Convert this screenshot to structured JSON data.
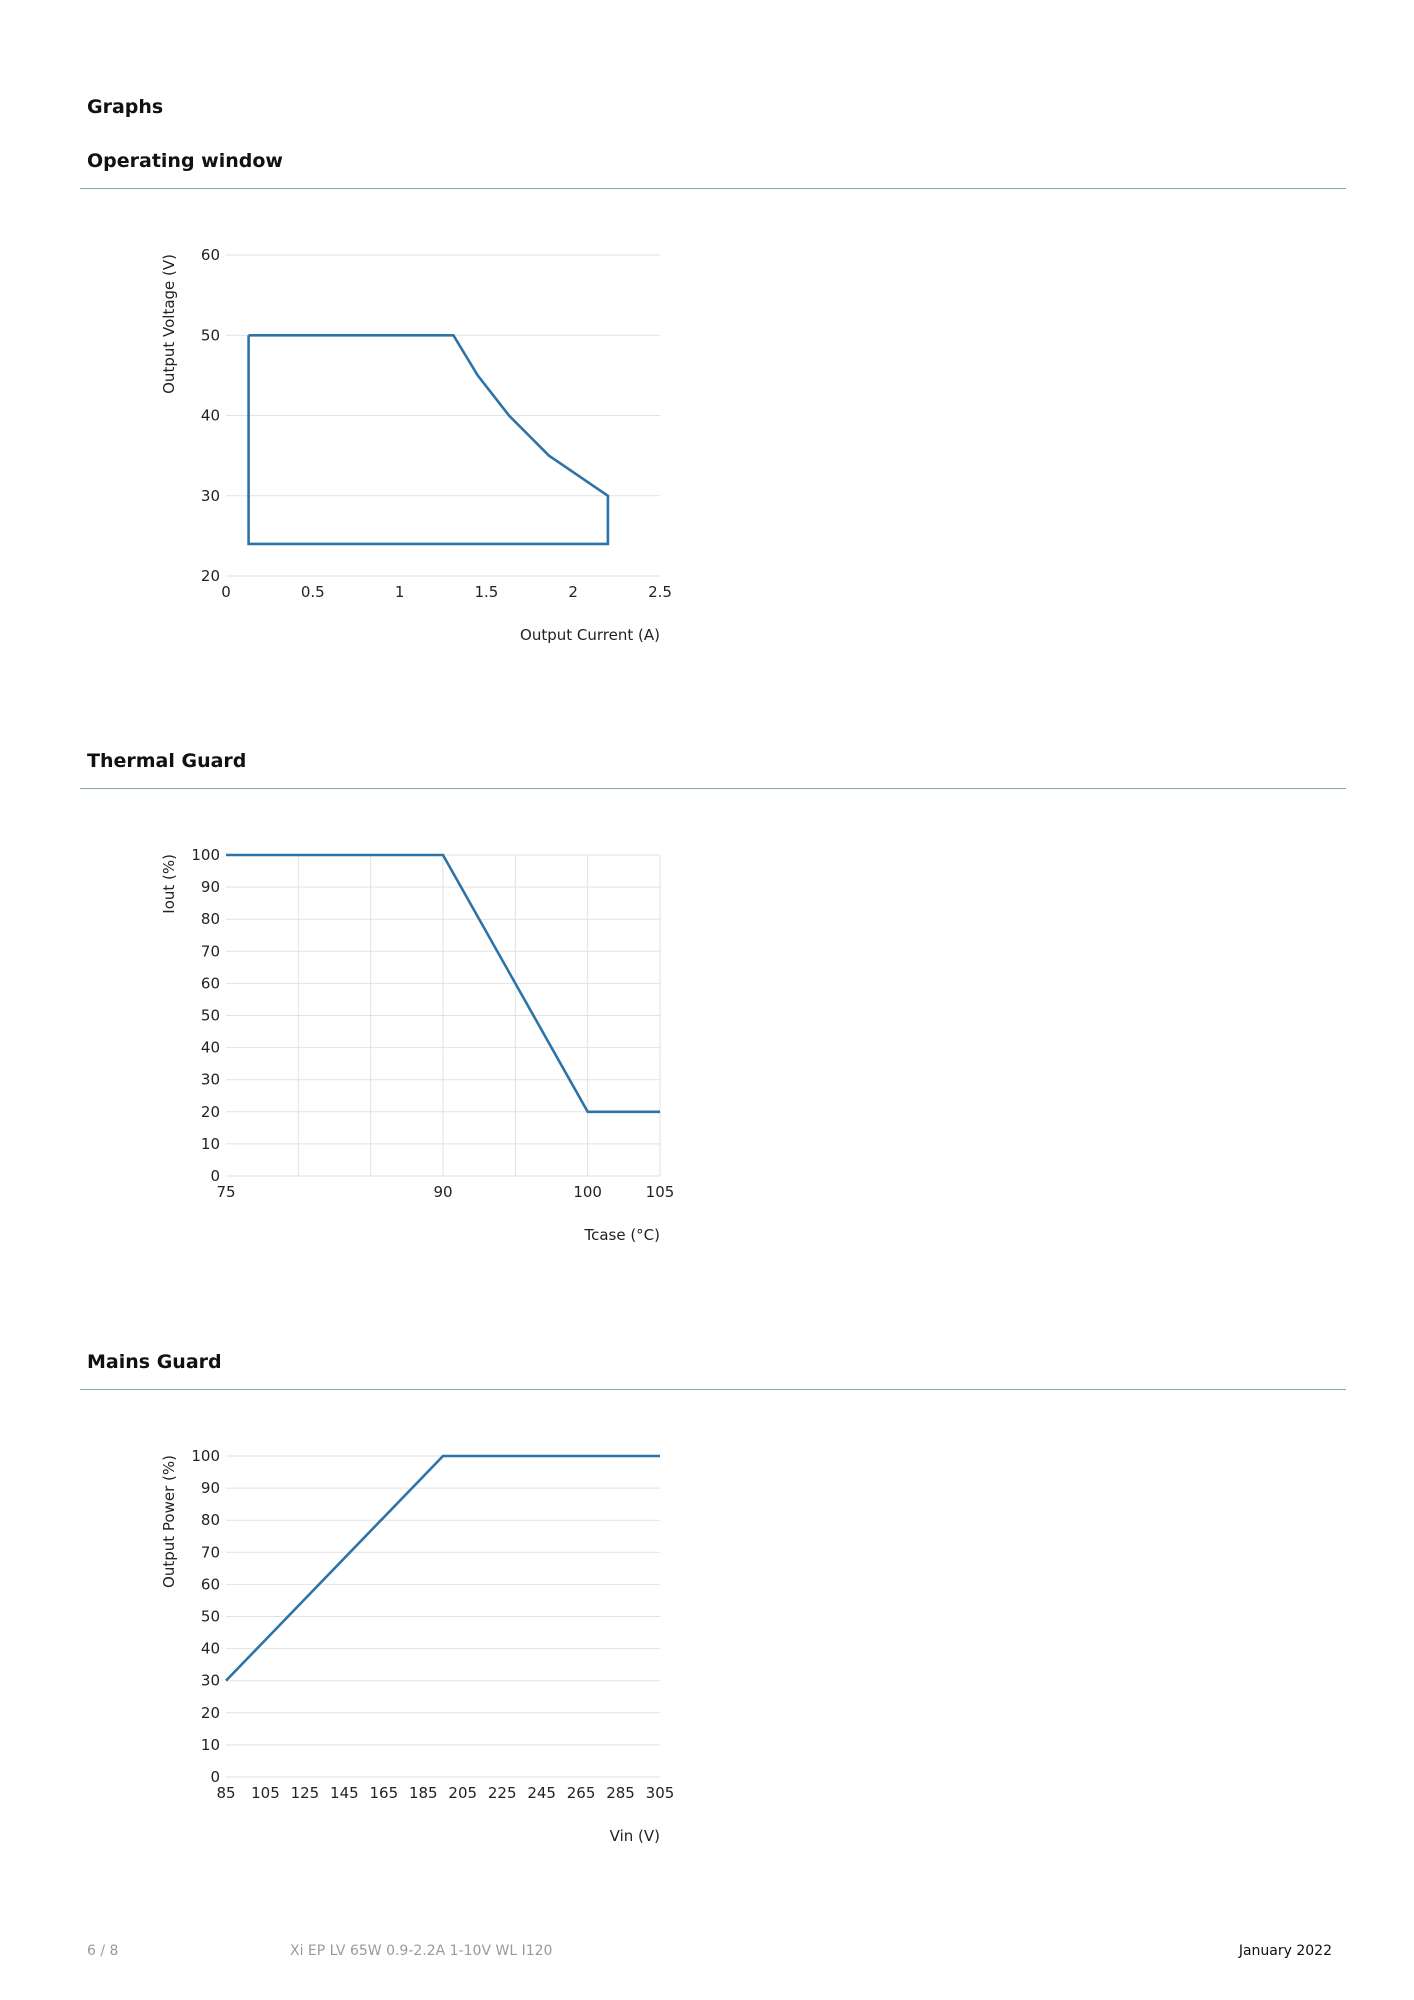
{
  "page": {
    "heading": "Graphs"
  },
  "sections": [
    {
      "title": "Operating window"
    },
    {
      "title": "Thermal Guard"
    },
    {
      "title": "Mains Guard"
    }
  ],
  "chart_data": [
    {
      "type": "line",
      "xlabel": "Output Current (A)",
      "ylabel": "Output Voltage (V)",
      "xlim": [
        0,
        2.5
      ],
      "ylim": [
        20,
        60
      ],
      "xticks": [
        0,
        0.5,
        1,
        1.5,
        2,
        2.5
      ],
      "xtick_labels": [
        "0",
        "0.5",
        "1",
        "1.5",
        "2",
        "2.5"
      ],
      "yticks": [
        20,
        30,
        40,
        50,
        60
      ],
      "ytick_labels": [
        "20",
        "30",
        "40",
        "50",
        "60"
      ],
      "vertical_grid": false,
      "series": [
        {
          "x": [
            0.13,
            1.31,
            1.45,
            1.63,
            1.86,
            2.2,
            2.2,
            0.13,
            0.13
          ],
          "y": [
            50,
            50,
            45,
            40,
            35,
            30,
            24,
            24,
            50
          ]
        }
      ]
    },
    {
      "type": "line",
      "xlabel": "Tcase (°C)",
      "ylabel": "Iout (%)",
      "xlim": [
        75,
        105
      ],
      "ylim": [
        0,
        100
      ],
      "xticks": [
        75,
        80,
        85,
        90,
        95,
        100,
        105
      ],
      "xtick_labels": [
        "75",
        "",
        "",
        "90",
        "",
        "100",
        "105"
      ],
      "yticks": [
        0,
        10,
        20,
        30,
        40,
        50,
        60,
        70,
        80,
        90,
        100
      ],
      "ytick_labels": [
        "0",
        "10",
        "20",
        "30",
        "40",
        "50",
        "60",
        "70",
        "80",
        "90",
        "100"
      ],
      "vertical_grid": true,
      "series": [
        {
          "x": [
            75,
            90,
            100,
            105
          ],
          "y": [
            100,
            100,
            20,
            20
          ]
        }
      ]
    },
    {
      "type": "line",
      "xlabel": "Vin (V)",
      "ylabel": "Output Power (%)",
      "xlim": [
        85,
        305
      ],
      "ylim": [
        0,
        100
      ],
      "xticks": [
        85,
        105,
        125,
        145,
        165,
        185,
        205,
        225,
        245,
        265,
        285,
        305
      ],
      "xtick_labels": [
        "85",
        "105",
        "125",
        "145",
        "165",
        "185",
        "205",
        "225",
        "245",
        "265",
        "285",
        "305"
      ],
      "yticks": [
        0,
        10,
        20,
        30,
        40,
        50,
        60,
        70,
        80,
        90,
        100
      ],
      "ytick_labels": [
        "0",
        "10",
        "20",
        "30",
        "40",
        "50",
        "60",
        "70",
        "80",
        "90",
        "100"
      ],
      "vertical_grid": false,
      "series": [
        {
          "x": [
            85,
            195,
            305
          ],
          "y": [
            30,
            100,
            100
          ]
        }
      ]
    }
  ],
  "footer": {
    "page_number": "6 / 8",
    "product": "Xi EP LV 65W 0.9-2.2A 1-10V WL I120",
    "date": "January 2022"
  },
  "colors": {
    "line": "#2e73a8",
    "rule": "#8aa4b4",
    "grid": "#e2e2e2"
  }
}
